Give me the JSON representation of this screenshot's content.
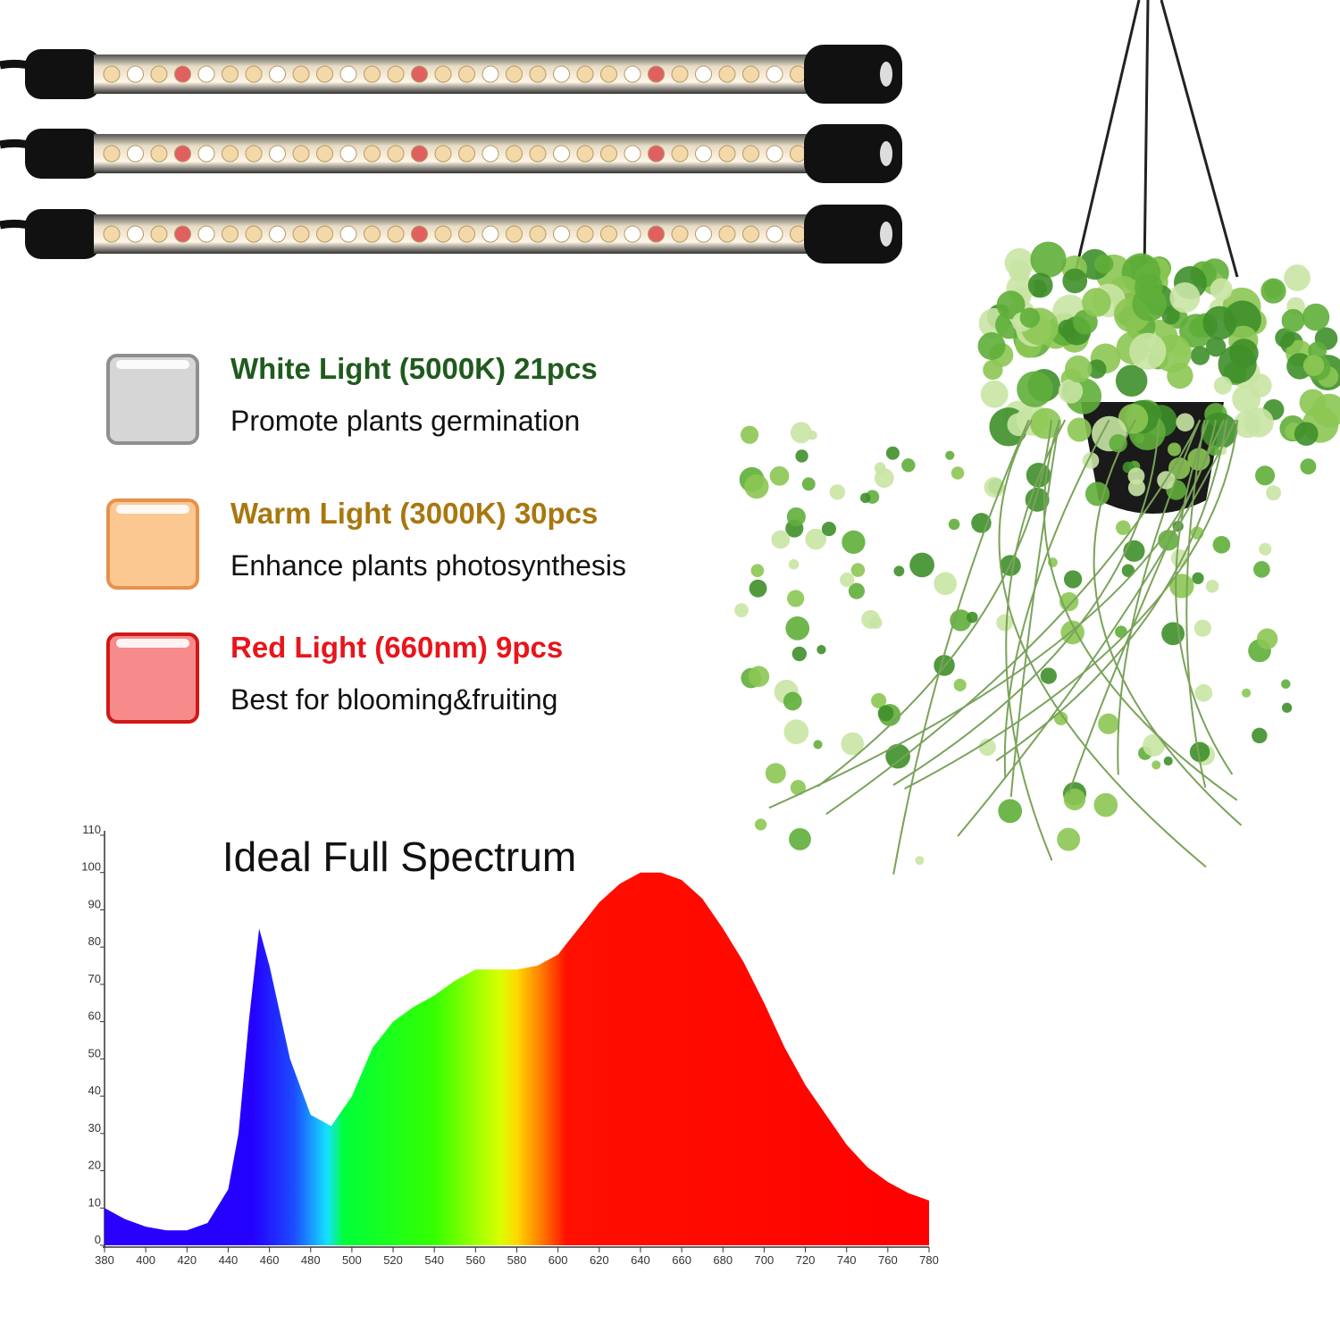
{
  "legend_items": [
    {
      "title": "White Light (5000K) 21pcs",
      "description": "Promote plants germination",
      "color": "#1f5b1c"
    },
    {
      "title": "Warm Light (3000K) 30pcs",
      "description": "Enhance plants photosynthesis",
      "color": "#a8770f"
    },
    {
      "title": "Red Light (660nm) 9pcs",
      "description": "Best for blooming&fruiting",
      "color": "#e8151a"
    }
  ],
  "chart_data": {
    "type": "area",
    "title": "Ideal Full Spectrum",
    "x": [
      380,
      390,
      400,
      410,
      420,
      430,
      440,
      445,
      450,
      455,
      460,
      470,
      480,
      490,
      500,
      510,
      520,
      530,
      540,
      550,
      560,
      570,
      580,
      590,
      600,
      610,
      620,
      630,
      640,
      650,
      660,
      670,
      680,
      690,
      700,
      710,
      720,
      730,
      740,
      750,
      760,
      770,
      780
    ],
    "values": [
      10,
      7,
      5,
      4,
      4,
      6,
      15,
      30,
      60,
      85,
      75,
      50,
      35,
      32,
      40,
      53,
      60,
      64,
      67,
      71,
      74,
      74,
      74,
      75,
      78,
      85,
      92,
      97,
      100,
      100,
      98,
      93,
      85,
      76,
      65,
      53,
      43,
      35,
      27,
      21,
      17,
      14,
      12
    ],
    "xlim": [
      380,
      780
    ],
    "ylim": [
      0,
      110
    ],
    "xticks": [
      380,
      400,
      420,
      440,
      460,
      480,
      500,
      520,
      540,
      560,
      580,
      600,
      620,
      640,
      660,
      680,
      700,
      720,
      740,
      760,
      780
    ],
    "yticks": [
      0,
      10,
      20,
      30,
      40,
      50,
      60,
      70,
      80,
      90,
      100,
      110
    ]
  }
}
